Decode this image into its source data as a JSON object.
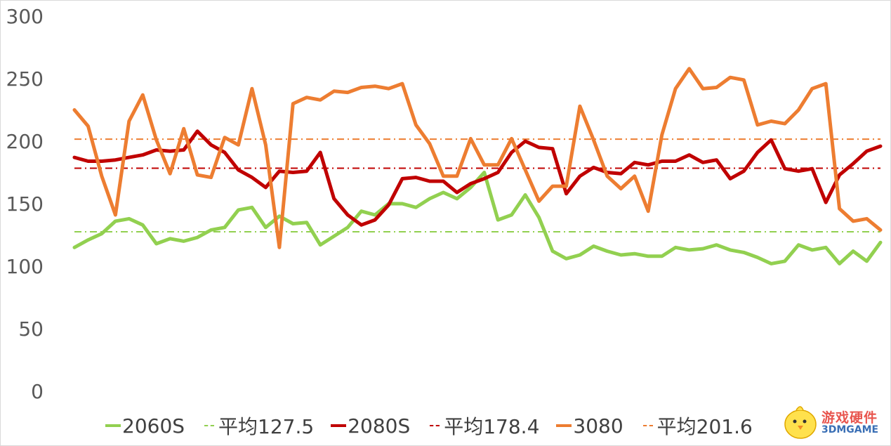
{
  "chart_data": {
    "type": "line",
    "title": "",
    "xlabel": "",
    "ylabel": "",
    "ylim": [
      0,
      300
    ],
    "yticks": [
      "0",
      "50",
      "100",
      "150",
      "200",
      "250",
      "300"
    ],
    "grid": false,
    "legend_position": "bottom",
    "series": [
      {
        "name": "2060S",
        "color": "#92d050",
        "values": [
          115,
          121,
          126,
          136,
          138,
          133,
          118,
          122,
          120,
          123,
          129,
          131,
          145,
          147,
          131,
          140,
          134,
          135,
          117,
          124,
          131,
          144,
          141,
          150,
          150,
          147,
          154,
          159,
          154,
          163,
          175,
          137,
          141,
          157,
          139,
          112,
          106,
          109,
          116,
          112,
          109,
          110,
          108,
          108,
          115,
          113,
          114,
          117,
          113,
          111,
          107,
          102,
          104,
          117,
          113,
          115,
          102,
          112,
          104,
          119
        ]
      },
      {
        "name": "平均127.5",
        "color": "#92d050",
        "dash": "dashdot",
        "values": [
          127.5
        ]
      },
      {
        "name": "2080S",
        "color": "#c00000",
        "values": [
          187,
          184,
          184,
          185,
          187,
          189,
          193,
          192,
          193,
          208,
          197,
          191,
          177,
          171,
          163,
          176,
          175,
          176,
          191,
          154,
          141,
          133,
          137,
          149,
          170,
          171,
          168,
          168,
          159,
          166,
          170,
          175,
          191,
          200,
          195,
          194,
          158,
          172,
          179,
          175,
          174,
          183,
          181,
          184,
          184,
          189,
          183,
          185,
          170,
          176,
          191,
          201,
          178,
          176,
          178,
          151,
          173,
          182,
          192,
          196
        ]
      },
      {
        "name": "平均178.4",
        "color": "#c00000",
        "dash": "dashdot",
        "values": [
          178.4
        ]
      },
      {
        "name": "3080",
        "color": "#ed7d31",
        "values": [
          225,
          212,
          172,
          141,
          216,
          237,
          201,
          174,
          210,
          173,
          171,
          203,
          197,
          242,
          197,
          115,
          230,
          235,
          233,
          240,
          239,
          243,
          244,
          242,
          246,
          213,
          198,
          172,
          172,
          202,
          181,
          181,
          202,
          177,
          152,
          164,
          164,
          228,
          201,
          172,
          162,
          172,
          144,
          205,
          242,
          258,
          242,
          243,
          251,
          249,
          213,
          216,
          214,
          225,
          242,
          246,
          146,
          136,
          138,
          129
        ]
      },
      {
        "name": "平均201.6",
        "color": "#ed7d31",
        "dash": "dashdot",
        "values": [
          201.6
        ]
      }
    ]
  },
  "legend": {
    "items": [
      "2060S",
      "平均127.5",
      "2080S",
      "平均178.4",
      "3080",
      "平均201.6"
    ]
  },
  "watermark": {
    "line1": "游戏硬件",
    "line2": "3DMGAME"
  }
}
